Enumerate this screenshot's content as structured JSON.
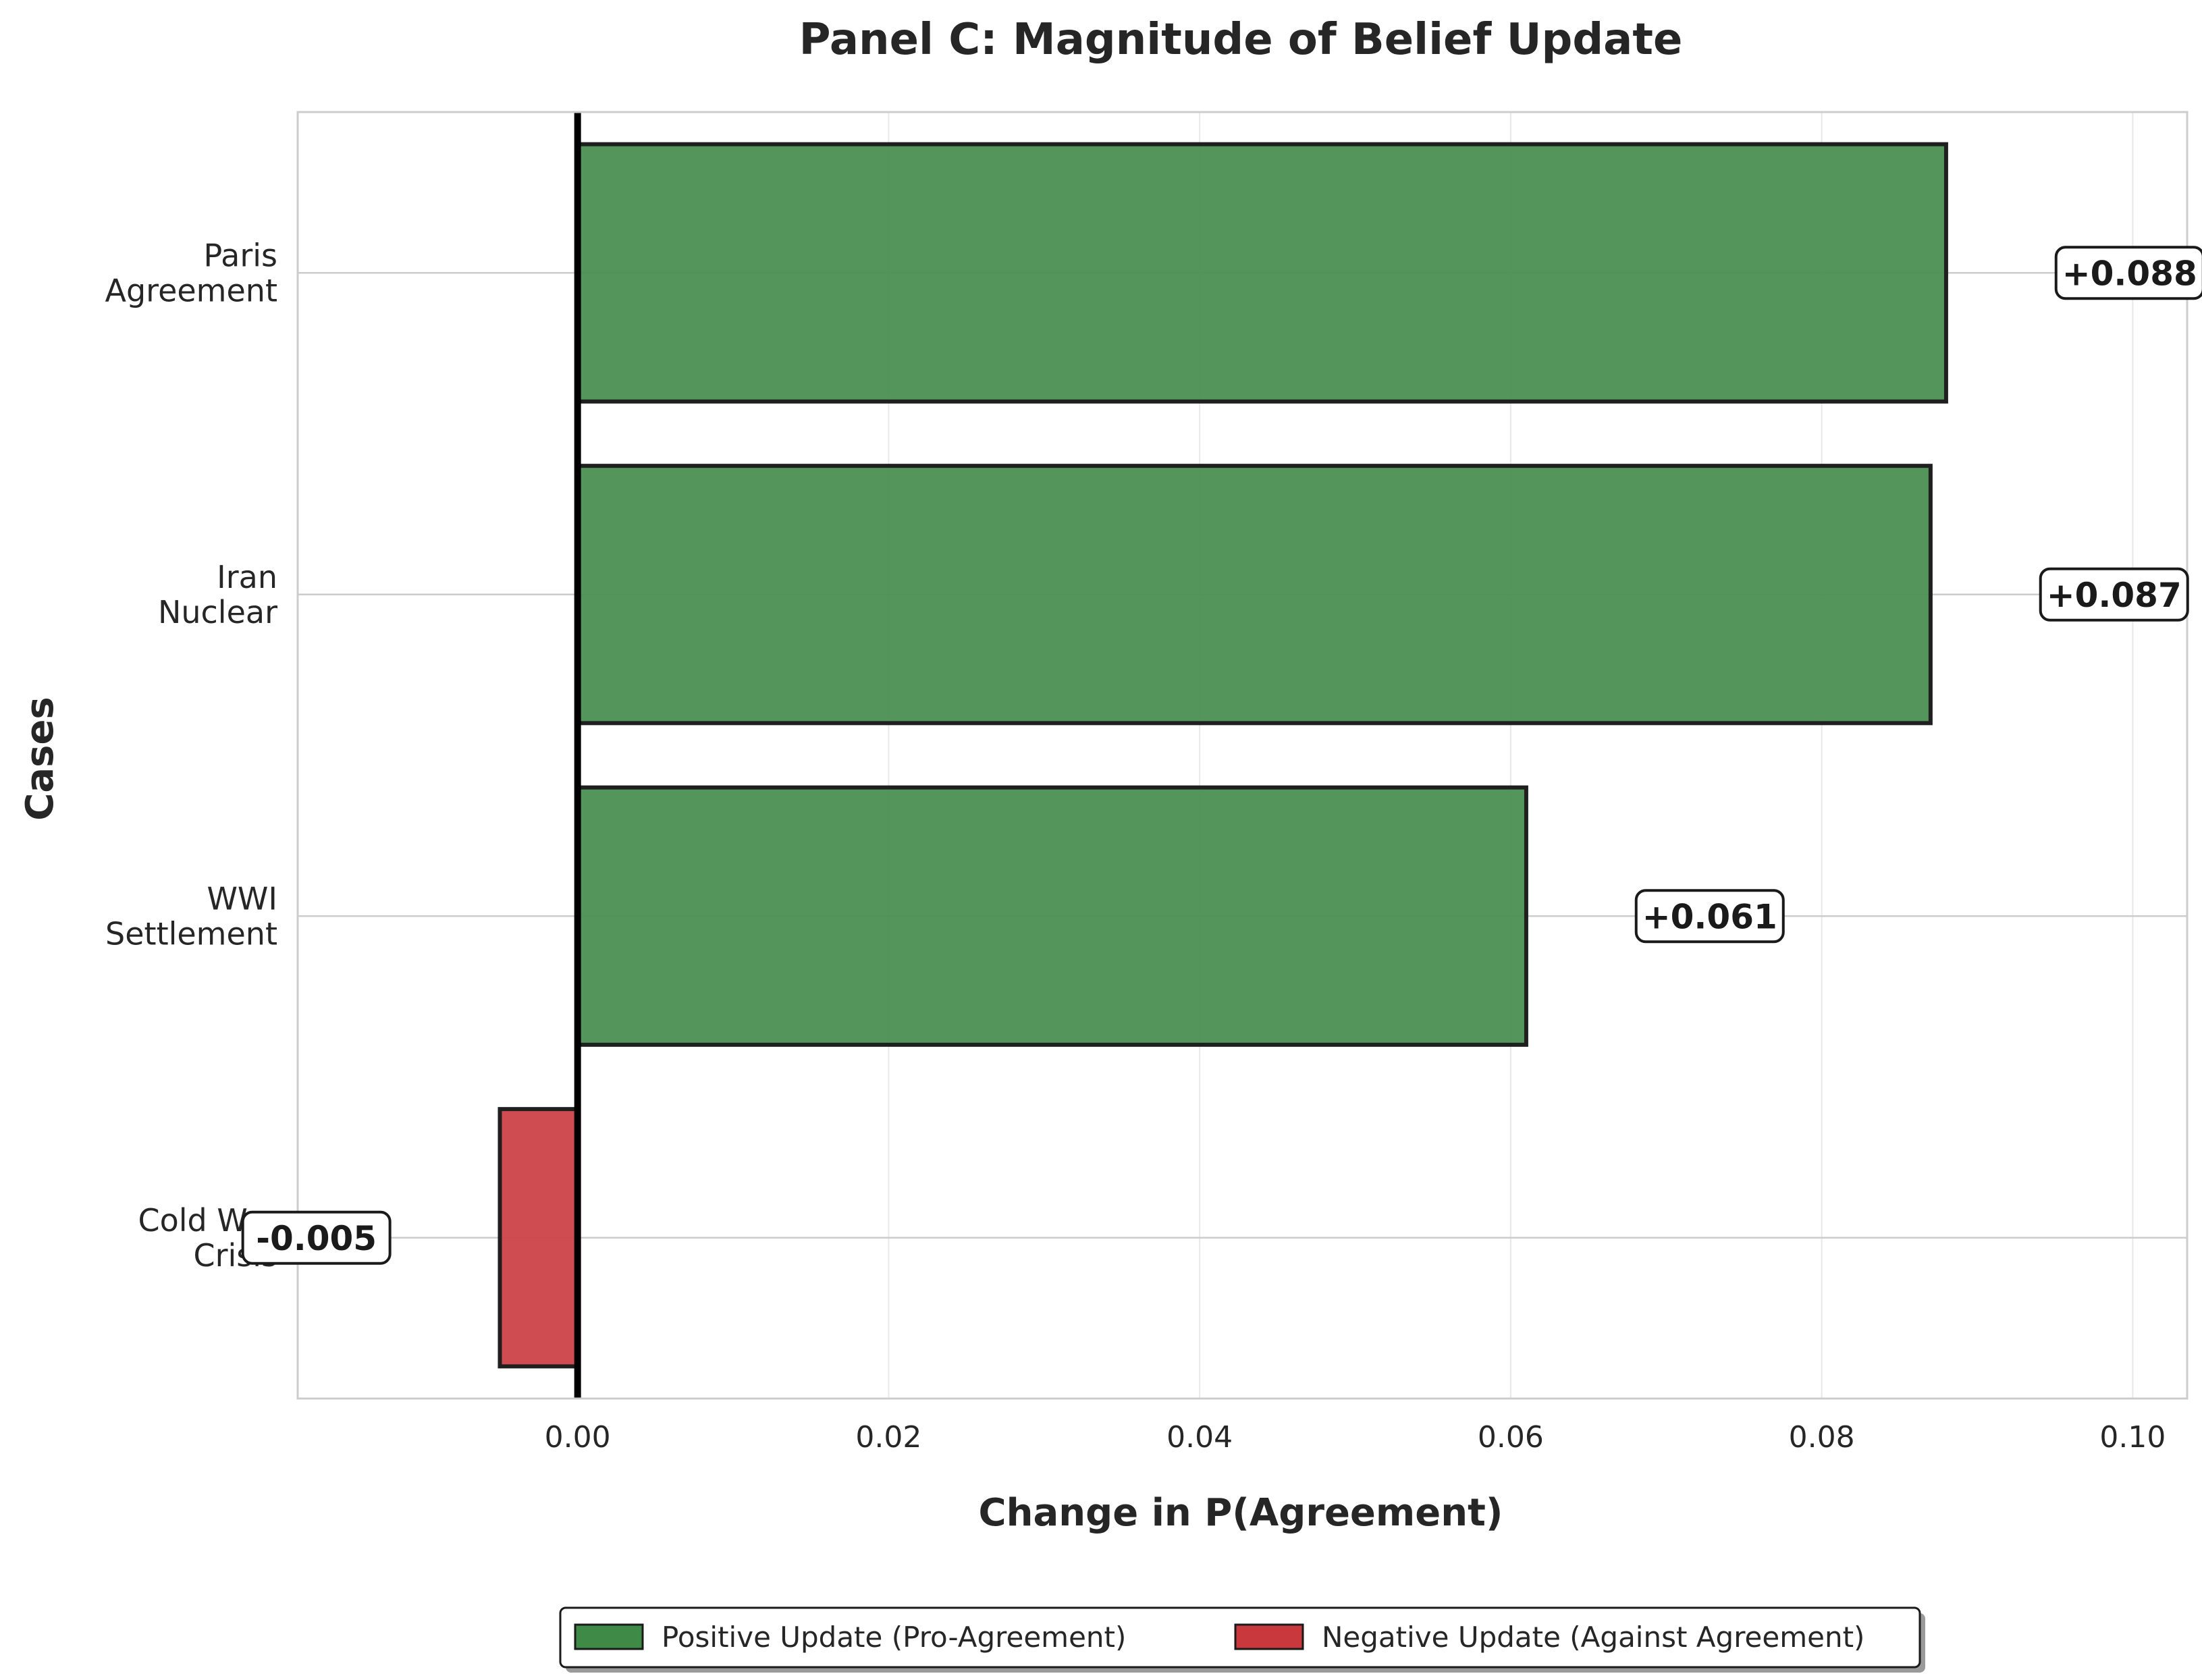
{
  "chart_data": {
    "type": "bar",
    "orientation": "horizontal",
    "title": "Panel C: Magnitude of Belief Update",
    "xlabel": "Change in P(Agreement)",
    "ylabel": "Cases",
    "categories": [
      "Paris\nAgreement",
      "Iran\nNuclear",
      "WWI\nSettlement",
      "Cold War\nCrisis"
    ],
    "values": [
      0.088,
      0.087,
      0.061,
      -0.005
    ],
    "data_labels": [
      "+0.088",
      "+0.087",
      "+0.061",
      "-0.005"
    ],
    "xlim": [
      -0.018,
      0.1035
    ],
    "xticks": [
      0.0,
      0.02,
      0.04,
      0.06,
      0.08,
      0.1
    ],
    "xtick_labels": [
      "0.00",
      "0.02",
      "0.04",
      "0.06",
      "0.08",
      "0.10"
    ],
    "grid": true,
    "legend_position": "bottom-center",
    "legend": [
      {
        "label": "Positive Update (Pro-Agreement)",
        "color": "#3f8a46"
      },
      {
        "label": "Negative Update (Against Agreement)",
        "color": "#c8383d"
      }
    ],
    "colors": {
      "positive": "#4b8f52",
      "negative": "#cc4247"
    }
  }
}
